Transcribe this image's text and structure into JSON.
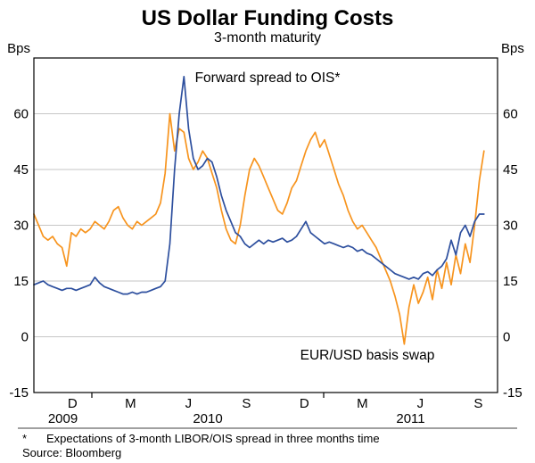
{
  "y_axis": {
    "unit_left": "Bps",
    "unit_right": "Bps"
  },
  "footer": {
    "marker": "*",
    "footnote": "Expectations of 3-month LIBOR/OIS spread in three months time",
    "source": "Source: Bloomberg"
  },
  "colors": {
    "blue": "#2d4f9e",
    "orange": "#f7941e",
    "grid": "#c6c6c6",
    "frame": "#000000"
  },
  "chart_data": {
    "type": "line",
    "title": "US Dollar Funding Costs",
    "subtitle": "3-month maturity",
    "ylabel": "Bps",
    "ylim": [
      -15,
      75
    ],
    "yticks": [
      -15,
      0,
      15,
      30,
      45,
      60
    ],
    "grid": true,
    "legend_position": "in-plot labels",
    "x_axis": {
      "domain_months": [
        0,
        24
      ],
      "tick_months": [
        2,
        5,
        8,
        11,
        14,
        17,
        20,
        23
      ],
      "tick_labels": [
        "D",
        "M",
        "J",
        "S",
        "D",
        "M",
        "J",
        "S"
      ],
      "year_labels": [
        {
          "label": "2009",
          "month": 1.5
        },
        {
          "label": "2010",
          "month": 9
        },
        {
          "label": "2011",
          "month": 19.5
        }
      ],
      "year_tick_months": [
        3,
        15
      ]
    },
    "series": [
      {
        "name": "Forward spread to OIS*",
        "color": "#2d4f9e",
        "x_range_months": [
          0,
          23.3
        ],
        "values": [
          14,
          14.5,
          15,
          14,
          13.5,
          13,
          12.5,
          13,
          13,
          12.5,
          13,
          13.5,
          14,
          16,
          14.5,
          13.5,
          13,
          12.5,
          12,
          11.5,
          11.5,
          12,
          11.5,
          12,
          12,
          12.5,
          13,
          13.5,
          15,
          25,
          45,
          60,
          70,
          56,
          48,
          45,
          46,
          48,
          47,
          43,
          38,
          34,
          31,
          28,
          27,
          25,
          24,
          25,
          26,
          25,
          26,
          25.5,
          26,
          26.5,
          25.5,
          26,
          27,
          29,
          31,
          28,
          27,
          26,
          25,
          25.5,
          25,
          24.5,
          24,
          24.5,
          24,
          23,
          23.5,
          22.5,
          22,
          21,
          20,
          19,
          18,
          17,
          16.5,
          16,
          15.5,
          16,
          15.5,
          17,
          17.5,
          16.5,
          18,
          19,
          21,
          26,
          22,
          28,
          30,
          27,
          31,
          33,
          33
        ]
      },
      {
        "name": "EUR/USD basis swap",
        "color": "#f7941e",
        "x_range_months": [
          0,
          23.3
        ],
        "values": [
          33,
          30,
          27,
          26,
          27,
          25,
          24,
          19,
          28,
          27,
          29,
          28,
          29,
          31,
          30,
          29,
          31,
          34,
          35,
          32,
          30,
          29,
          31,
          30,
          31,
          32,
          33,
          36,
          44,
          60,
          50,
          56,
          55,
          48,
          45,
          47,
          50,
          48,
          44,
          40,
          34,
          29,
          26,
          25,
          30,
          38,
          45,
          48,
          46,
          43,
          40,
          37,
          34,
          33,
          36,
          40,
          42,
          46,
          50,
          53,
          55,
          51,
          53,
          49,
          45,
          41,
          38,
          34,
          31,
          29,
          30,
          28,
          26,
          24,
          21,
          18,
          15,
          11,
          6,
          -2,
          8,
          14,
          9,
          12,
          16,
          10,
          18,
          13,
          20,
          14,
          22,
          17,
          25,
          20,
          30,
          42,
          50
        ]
      }
    ]
  }
}
